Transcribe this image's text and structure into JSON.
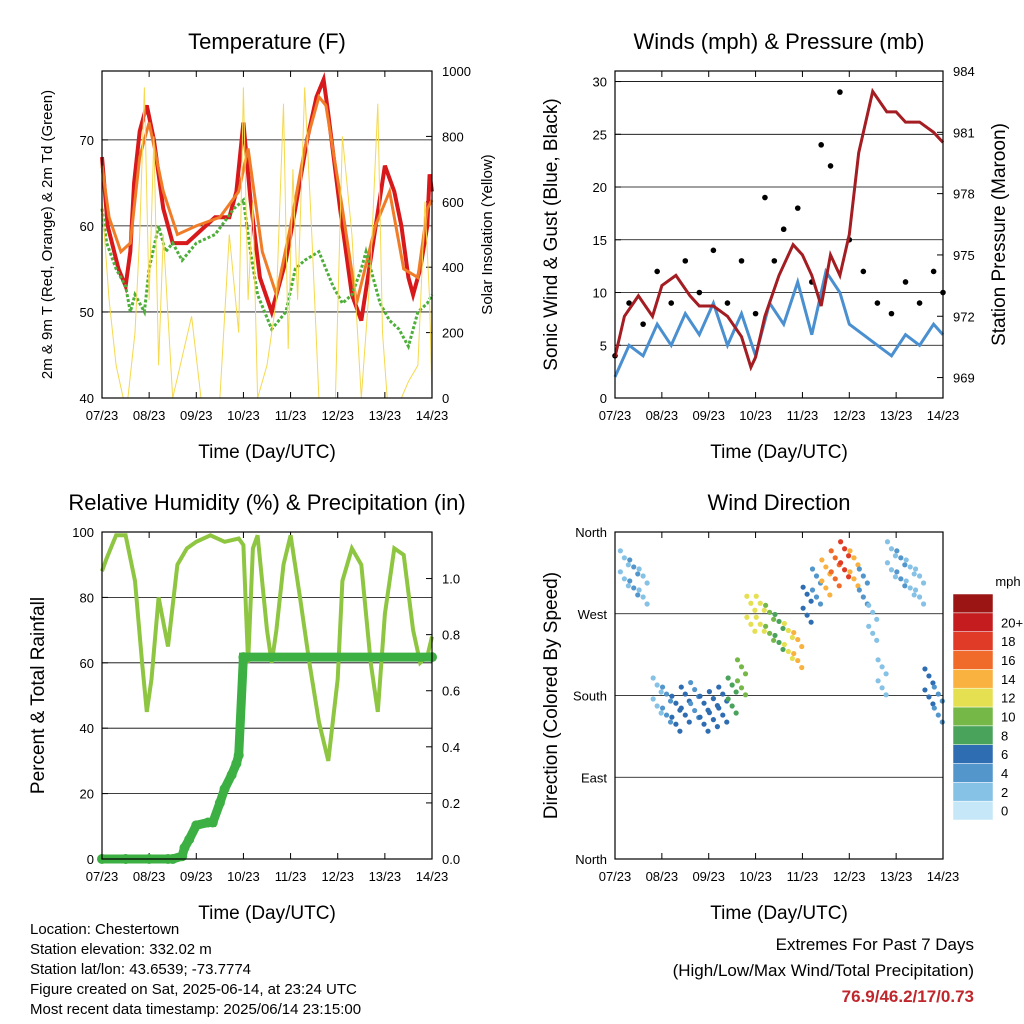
{
  "footer": {
    "location": "Location: Chestertown",
    "elevation": "Station elevation: 332.02 m",
    "latlon": "Station lat/lon: 43.6539; -73.7774",
    "created": "Figure created on Sat, 2025-06-14, at 23:24 UTC",
    "recent": "Most recent data timestamp: 2025/06/14 23:15:00"
  },
  "extremes": {
    "title": "Extremes For Past 7 Days",
    "subtitle": "(High/Low/Max Wind/Total Precipitation)",
    "values": "76.9/46.2/17/0.73"
  },
  "colors": {
    "temp2m": "#d7191c",
    "temp9m": "#f07c28",
    "dewpoint": "#4daf3a",
    "solar": "#f5d94e",
    "wind": "#4a90d0",
    "gust": "#000000",
    "pressure": "#a31d22",
    "rh": "#8ec641",
    "precip": "#3cb043",
    "speed_scale": [
      "#c6e7f7",
      "#86c1e6",
      "#5296cc",
      "#2e6db2",
      "#4aa35b",
      "#76b848",
      "#e5e052",
      "#f9b13f",
      "#f06a2a",
      "#e03b26",
      "#c51d1f",
      "#9b1514"
    ]
  },
  "chart_data": [
    {
      "type": "line",
      "title": "Temperature (F)",
      "xlabel": "Time (Day/UTC)",
      "ylabel": "2m & 9m T (Red, Orange) & 2m Td (Green)",
      "y2label": "Solar Insolation (Yellow)",
      "x_ticks": [
        "07/23",
        "08/23",
        "09/23",
        "10/23",
        "11/23",
        "12/23",
        "13/23",
        "14/23"
      ],
      "xlim": [
        0,
        7
      ],
      "ylim": [
        40,
        78
      ],
      "y_ticks": [
        40,
        50,
        60,
        70
      ],
      "y2lim": [
        0,
        1000
      ],
      "y2_ticks": [
        0,
        200,
        400,
        600,
        800,
        1000
      ],
      "gridlines": [
        50,
        60,
        70
      ],
      "series": [
        {
          "key": "temp2m",
          "x": [
            0,
            0.12,
            0.35,
            0.5,
            0.6,
            0.68,
            0.8,
            0.95,
            1.1,
            1.3,
            1.5,
            1.8,
            2.0,
            2.2,
            2.4,
            2.7,
            2.85,
            3.0,
            3.15,
            3.35,
            3.6,
            3.9,
            4.1,
            4.35,
            4.55,
            4.7,
            4.8,
            5.05,
            5.3,
            5.5,
            5.75,
            6.0,
            6.2,
            6.35,
            6.5,
            6.6,
            6.75,
            6.9,
            6.95,
            7.0
          ],
          "values": [
            68,
            60,
            55,
            53,
            57,
            65,
            71,
            74,
            70,
            62,
            58,
            58,
            59,
            60,
            61,
            61,
            64,
            72,
            63,
            54,
            50,
            56,
            62,
            70,
            75,
            77,
            73,
            62,
            52,
            49,
            58,
            67,
            64,
            60,
            54,
            52,
            55,
            60,
            66,
            64
          ]
        },
        {
          "key": "temp9m",
          "x": [
            0,
            0.15,
            0.4,
            0.6,
            0.8,
            1.0,
            1.3,
            1.6,
            2.0,
            2.5,
            2.9,
            3.1,
            3.4,
            3.7,
            4.0,
            4.3,
            4.6,
            4.75,
            5.1,
            5.4,
            5.8,
            6.1,
            6.4,
            6.7,
            6.9,
            7.0
          ],
          "values": [
            67,
            61,
            57,
            58,
            68,
            72,
            64,
            59,
            60,
            61,
            64,
            69,
            57,
            52,
            60,
            69,
            75,
            74,
            62,
            51,
            60,
            64,
            55,
            54,
            62,
            63
          ]
        },
        {
          "key": "dewpoint",
          "x": [
            0,
            0.1,
            0.3,
            0.5,
            0.6,
            0.7,
            0.9,
            1.0,
            1.2,
            1.35,
            1.5,
            1.7,
            2.0,
            2.4,
            2.8,
            3.0,
            3.15,
            3.3,
            3.6,
            3.9,
            4.1,
            4.3,
            4.6,
            4.9,
            5.1,
            5.3,
            5.5,
            5.6,
            5.9,
            6.1,
            6.3,
            6.5,
            6.7,
            6.9,
            7.0
          ],
          "values": [
            62,
            58,
            55,
            53,
            50,
            52,
            50,
            55,
            60,
            57,
            58,
            56,
            58,
            59,
            62,
            63,
            57,
            52,
            48,
            50,
            55,
            56,
            57,
            53,
            51,
            52,
            55,
            57,
            51,
            49,
            48,
            46,
            50,
            51,
            52
          ]
        },
        {
          "key": "solar",
          "axis": "y2",
          "x": [
            0,
            0.15,
            0.3,
            0.45,
            0.55,
            0.7,
            0.8,
            0.9,
            1.0,
            1.1,
            1.2,
            1.3,
            1.5,
            1.9,
            2.1,
            2.3,
            2.5,
            2.7,
            2.9,
            3.0,
            3.1,
            3.2,
            3.3,
            3.5,
            3.7,
            3.85,
            3.95,
            4.05,
            4.15,
            4.3,
            4.45,
            4.6,
            4.8,
            4.95,
            5.1,
            5.3,
            5.5,
            5.7,
            5.85,
            5.95,
            6.05,
            6.2,
            6.35,
            6.5,
            6.7,
            6.85,
            6.95,
            7.0
          ],
          "values": [
            600,
            300,
            100,
            0,
            0,
            200,
            500,
            950,
            300,
            800,
            100,
            500,
            0,
            250,
            0,
            0,
            0,
            500,
            200,
            950,
            300,
            600,
            0,
            100,
            300,
            900,
            150,
            700,
            300,
            950,
            500,
            0,
            0,
            0,
            800,
            500,
            0,
            400,
            900,
            200,
            0,
            0,
            0,
            50,
            100,
            600,
            300,
            0
          ]
        }
      ]
    },
    {
      "type": "line",
      "title": "Winds (mph) & Pressure (mb)",
      "xlabel": "Time (Day/UTC)",
      "ylabel": "Sonic Wind & Gust (Blue, Black)",
      "y2label": "Station Pressure (Maroon)",
      "x_ticks": [
        "07/23",
        "08/23",
        "09/23",
        "10/23",
        "11/23",
        "12/23",
        "13/23",
        "14/23"
      ],
      "xlim": [
        0,
        7
      ],
      "ylim": [
        0,
        31
      ],
      "y_ticks": [
        0,
        5,
        10,
        15,
        20,
        25,
        30
      ],
      "y2lim": [
        968,
        984
      ],
      "y2_ticks": [
        969,
        972,
        975,
        978,
        981,
        984
      ],
      "gridlines": [
        5,
        10,
        15,
        20,
        25,
        30
      ],
      "series": [
        {
          "key": "wind",
          "x": [
            0,
            0.3,
            0.6,
            0.9,
            1.2,
            1.5,
            1.8,
            2.1,
            2.4,
            2.7,
            3.0,
            3.3,
            3.6,
            3.9,
            4.2,
            4.5,
            4.8,
            5.0,
            5.3,
            5.6,
            5.9,
            6.2,
            6.5,
            6.8,
            7.0
          ],
          "values": [
            2,
            5,
            4,
            7,
            5,
            8,
            6,
            9,
            5,
            8,
            4,
            9,
            7,
            11,
            6,
            12,
            10,
            7,
            6,
            5,
            4,
            6,
            5,
            7,
            6
          ]
        },
        {
          "key": "gust",
          "type": "scatter",
          "x": [
            0,
            0.3,
            0.6,
            0.9,
            1.2,
            1.5,
            1.8,
            2.1,
            2.4,
            2.7,
            3.0,
            3.2,
            3.4,
            3.6,
            3.9,
            4.2,
            4.4,
            4.6,
            4.8,
            5.0,
            5.3,
            5.6,
            5.9,
            6.2,
            6.5,
            6.8,
            7.0
          ],
          "values": [
            4,
            9,
            7,
            12,
            9,
            13,
            10,
            14,
            9,
            13,
            8,
            19,
            13,
            16,
            18,
            11,
            24,
            22,
            29,
            15,
            12,
            9,
            8,
            11,
            9,
            12,
            10
          ]
        },
        {
          "key": "pressure",
          "axis": "y2",
          "x": [
            0,
            0.2,
            0.5,
            0.8,
            1.0,
            1.3,
            1.6,
            1.8,
            2.1,
            2.4,
            2.7,
            2.9,
            3.0,
            3.2,
            3.5,
            3.8,
            4.0,
            4.2,
            4.4,
            4.6,
            4.8,
            5.0,
            5.2,
            5.5,
            5.8,
            6.0,
            6.2,
            6.5,
            6.8,
            7.0
          ],
          "values": [
            970,
            972,
            973,
            972,
            973.5,
            974,
            973,
            972.5,
            972.5,
            972,
            971,
            969.5,
            970,
            972,
            974,
            975.5,
            975,
            974,
            972.5,
            975,
            974,
            976,
            980,
            983,
            982,
            982,
            981.5,
            981.5,
            981,
            980.5
          ]
        }
      ]
    },
    {
      "type": "line",
      "title": "Relative Humidity (%) & Precipitation (in)",
      "xlabel": "Time (Day/UTC)",
      "ylabel": "Percent & Total Rainfall",
      "x_ticks": [
        "07/23",
        "08/23",
        "09/23",
        "10/23",
        "11/23",
        "12/23",
        "13/23",
        "14/23"
      ],
      "xlim": [
        0,
        7
      ],
      "ylim": [
        0,
        100
      ],
      "y_ticks": [
        0,
        20,
        40,
        60,
        80,
        100
      ],
      "y2lim": [
        0,
        1.166
      ],
      "y2_ticks": [
        0.0,
        0.2,
        0.4,
        0.6,
        0.8,
        1.0
      ],
      "gridlines": [
        20,
        40,
        60,
        80
      ],
      "series": [
        {
          "key": "rh",
          "x": [
            0,
            0.1,
            0.3,
            0.5,
            0.7,
            0.85,
            0.95,
            1.05,
            1.2,
            1.4,
            1.6,
            1.8,
            2.0,
            2.3,
            2.6,
            2.9,
            3.0,
            3.1,
            3.2,
            3.3,
            3.5,
            3.6,
            3.7,
            3.85,
            4.0,
            4.2,
            4.4,
            4.6,
            4.8,
            5.0,
            5.1,
            5.3,
            5.5,
            5.6,
            5.7,
            5.85,
            6.0,
            6.2,
            6.4,
            6.6,
            6.75,
            6.9,
            7.0
          ],
          "values": [
            88,
            92,
            99,
            99,
            85,
            60,
            45,
            55,
            80,
            65,
            90,
            95,
            97,
            99,
            97,
            98,
            96,
            60,
            95,
            99,
            70,
            60,
            70,
            90,
            99,
            80,
            60,
            42,
            30,
            55,
            85,
            95,
            90,
            75,
            60,
            45,
            75,
            95,
            93,
            70,
            60,
            62,
            68
          ]
        },
        {
          "key": "precip",
          "axis": "y2",
          "x": [
            0,
            0.5,
            1.0,
            1.4,
            1.5,
            1.7,
            1.75,
            1.85,
            2.0,
            2.25,
            2.35,
            2.5,
            2.6,
            2.75,
            2.85,
            2.9,
            3.0,
            7.0
          ],
          "values": [
            0,
            0,
            0,
            0,
            0,
            0.01,
            0.04,
            0.07,
            0.12,
            0.13,
            0.13,
            0.2,
            0.25,
            0.3,
            0.34,
            0.37,
            0.72,
            0.72
          ]
        }
      ]
    },
    {
      "type": "scatter",
      "title": "Wind Direction",
      "xlabel": "Time (Day/UTC)",
      "ylabel": "Direction (Colored By Speed)",
      "x_ticks": [
        "07/23",
        "08/23",
        "09/23",
        "10/23",
        "11/23",
        "12/23",
        "13/23",
        "14/23"
      ],
      "xlim": [
        0,
        7
      ],
      "ylim": [
        0,
        360
      ],
      "y_ticks": [
        "North",
        "East",
        "South",
        "West",
        "North"
      ],
      "colorbar_title": "mph",
      "colorbar_labels": [
        "0",
        "2",
        "4",
        "6",
        "8",
        "10",
        "12",
        "14",
        "16",
        "18",
        "20+"
      ],
      "series": [
        {
          "key": "direction",
          "x": [
            0.2,
            0.4,
            0.6,
            0.9,
            1.1,
            1.3,
            1.5,
            1.7,
            1.9,
            2.1,
            2.3,
            2.5,
            2.7,
            2.9,
            3.1,
            3.3,
            3.5,
            3.7,
            3.9,
            4.1,
            4.3,
            4.5,
            4.7,
            4.9,
            5.1,
            5.3,
            5.5,
            5.7,
            5.9,
            6.1,
            6.3,
            6.5,
            6.7,
            6.9
          ],
          "values": [
            320,
            310,
            300,
            180,
            170,
            160,
            170,
            175,
            160,
            165,
            170,
            180,
            200,
            270,
            270,
            260,
            250,
            240,
            230,
            280,
            300,
            310,
            320,
            330,
            320,
            300,
            260,
            200,
            330,
            320,
            310,
            300,
            190,
            170
          ],
          "speed": [
            3,
            4,
            3,
            2,
            5,
            7,
            6,
            5,
            7,
            6,
            7,
            9,
            11,
            13,
            12,
            10,
            9,
            13,
            14,
            7,
            5,
            14,
            16,
            18,
            14,
            4,
            3,
            2,
            3,
            4,
            3,
            3,
            6,
            5
          ]
        }
      ]
    }
  ]
}
